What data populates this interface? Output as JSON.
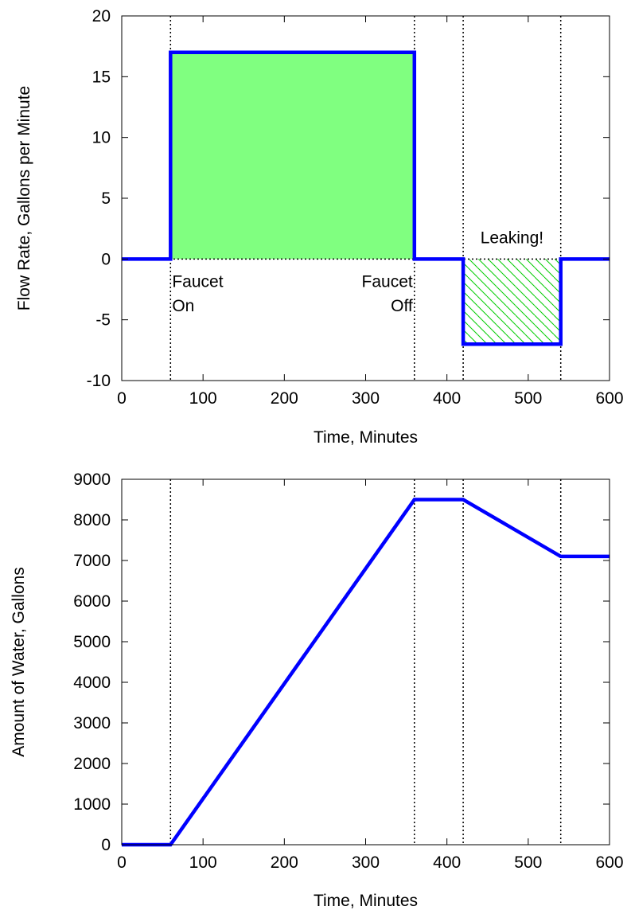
{
  "chart_data": [
    {
      "type": "line",
      "xlabel": "Time, Minutes",
      "ylabel": "Flow Rate, Gallons per Minute",
      "xlim": [
        0,
        600
      ],
      "ylim": [
        -10,
        20
      ],
      "xticks": [
        0,
        100,
        200,
        300,
        400,
        500,
        600
      ],
      "yticks": [
        -10,
        -5,
        0,
        5,
        10,
        15,
        20
      ],
      "grid": false,
      "line_color": "#0000ff",
      "series": [
        {
          "x": [
            0,
            60,
            60,
            360,
            360,
            420,
            420,
            540,
            540,
            600
          ],
          "y": [
            0,
            0,
            17,
            17,
            0,
            0,
            -7,
            -7,
            0,
            0
          ]
        }
      ],
      "vlines": [
        60,
        360,
        420,
        540
      ],
      "filled_regions": [
        {
          "x": [
            60,
            360
          ],
          "y": [
            0,
            17
          ],
          "style": "solid",
          "color": "#80ff80"
        },
        {
          "x": [
            420,
            540
          ],
          "y": [
            -7,
            0
          ],
          "style": "hatched",
          "color": "#00cc00"
        }
      ],
      "annotations": [
        {
          "text": "Faucet",
          "x": 62,
          "y": -2.3,
          "anchor": "start"
        },
        {
          "text": "On",
          "x": 62,
          "y": -4.3,
          "anchor": "start"
        },
        {
          "text": "Faucet",
          "x": 358,
          "y": -2.3,
          "anchor": "end"
        },
        {
          "text": "Off",
          "x": 358,
          "y": -4.3,
          "anchor": "end"
        },
        {
          "text": "Leaking!",
          "x": 480,
          "y": 1.3,
          "anchor": "middle"
        }
      ]
    },
    {
      "type": "line",
      "xlabel": "Time, Minutes",
      "ylabel": "Amount of Water, Gallons",
      "xlim": [
        0,
        600
      ],
      "ylim": [
        0,
        9000
      ],
      "xticks": [
        0,
        100,
        200,
        300,
        400,
        500,
        600
      ],
      "yticks": [
        0,
        1000,
        2000,
        3000,
        4000,
        5000,
        6000,
        7000,
        8000,
        9000
      ],
      "grid": false,
      "line_color": "#0000ff",
      "series": [
        {
          "x": [
            0,
            60,
            360,
            420,
            540,
            600
          ],
          "y": [
            0,
            0,
            8500,
            8500,
            7100,
            7100
          ]
        }
      ],
      "vlines": [
        60,
        360,
        420,
        540
      ]
    }
  ]
}
